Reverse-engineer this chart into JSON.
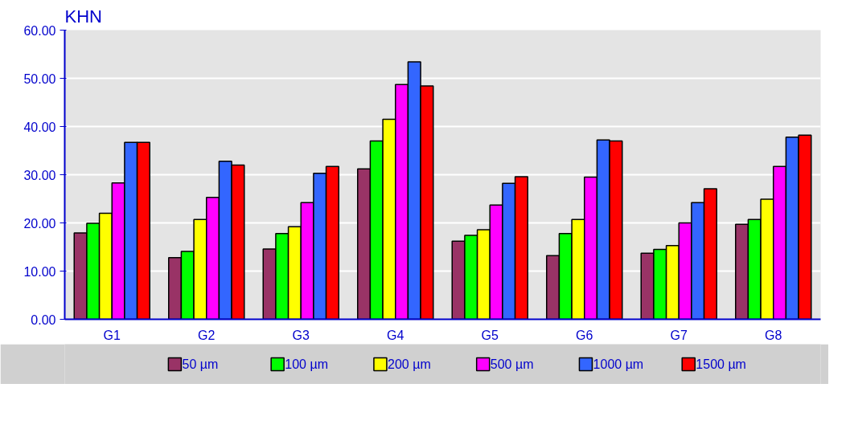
{
  "chart_data": {
    "type": "bar",
    "ylabel": "KHN",
    "categories": [
      "G1",
      "G2",
      "G3",
      "G4",
      "G5",
      "G6",
      "G7",
      "G8"
    ],
    "series": [
      {
        "name": "50 µm",
        "color": "#993366",
        "values": [
          17.9,
          12.8,
          14.6,
          31.2,
          16.2,
          13.2,
          13.7,
          19.7
        ]
      },
      {
        "name": "100 µm",
        "color": "#00ff00",
        "values": [
          19.9,
          14.1,
          17.8,
          37.0,
          17.4,
          17.8,
          14.5,
          20.7
        ]
      },
      {
        "name": "200 µm",
        "color": "#ffff00",
        "values": [
          22.0,
          20.7,
          19.2,
          41.5,
          18.6,
          20.7,
          15.3,
          24.9
        ]
      },
      {
        "name": "500 µm",
        "color": "#ff00ff",
        "values": [
          28.3,
          25.3,
          24.2,
          48.7,
          23.7,
          29.5,
          20.0,
          31.7
        ]
      },
      {
        "name": "1000 µm",
        "color": "#3366ff",
        "values": [
          36.7,
          32.8,
          30.3,
          53.4,
          28.2,
          37.2,
          24.2,
          37.8
        ]
      },
      {
        "name": "1500 µm",
        "color": "#ff0000",
        "values": [
          36.7,
          32.0,
          31.7,
          48.4,
          29.6,
          37.0,
          27.1,
          38.2
        ]
      }
    ],
    "ylim": [
      0,
      60
    ],
    "yticks": [
      {
        "value": 0,
        "label": "0.00"
      },
      {
        "value": 10,
        "label": "10.00"
      },
      {
        "value": 20,
        "label": "20.00"
      },
      {
        "value": 30,
        "label": "30.00"
      },
      {
        "value": 40,
        "label": "40.00"
      },
      {
        "value": 50,
        "label": "50.00"
      },
      {
        "value": 60,
        "label": "60.00"
      }
    ],
    "grid": "y",
    "legend": "bottom"
  }
}
